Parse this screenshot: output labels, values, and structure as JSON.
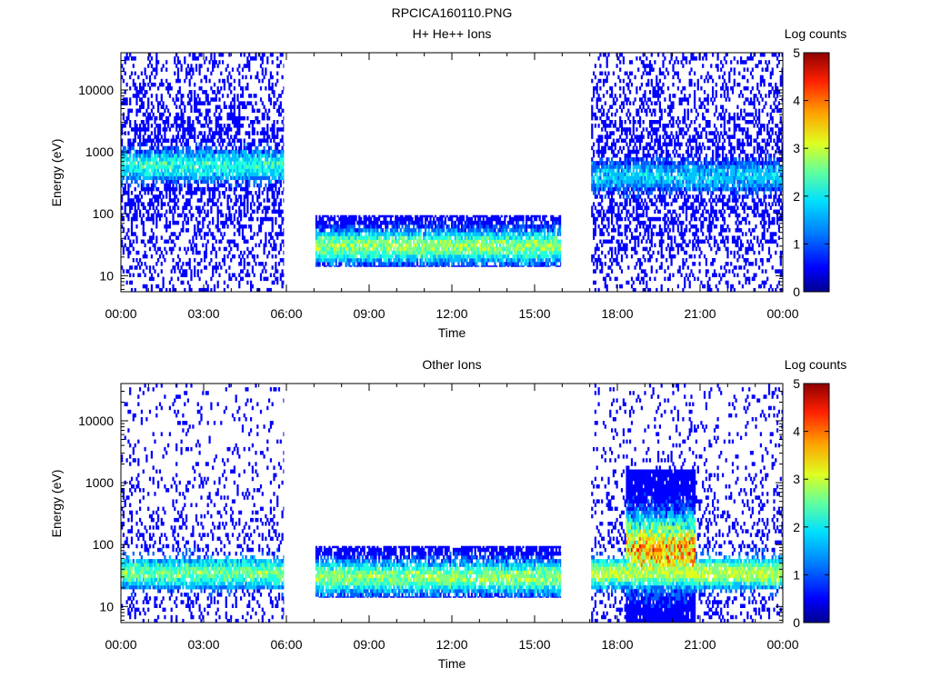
{
  "page_title": "RPCICA160110.PNG",
  "colors": {
    "colormap": [
      "#00008f",
      "#0000ff",
      "#0060ff",
      "#00c0ff",
      "#20ffdf",
      "#80ff80",
      "#dfff20",
      "#ffc000",
      "#ff6000",
      "#ff0000",
      "#8f0000"
    ],
    "background": "#ffffff"
  },
  "chart_data": [
    {
      "type": "heatmap",
      "title": "H+ He++ Ions",
      "xlabel": "Time",
      "ylabel": "Energy (eV)",
      "x_ticks": [
        "00:00",
        "03:00",
        "06:00",
        "09:00",
        "12:00",
        "15:00",
        "18:00",
        "21:00",
        "00:00"
      ],
      "xlim_hours": [
        0,
        24
      ],
      "y_scale": "log",
      "ylim": [
        5.5,
        40000
      ],
      "y_ticks": [
        10,
        100,
        1000,
        10000
      ],
      "y_tick_labels": [
        "10",
        "100",
        "1000",
        "10000"
      ],
      "colorbar_label": "Log counts",
      "colorbar_range": [
        0,
        5
      ],
      "colorbar_ticks": [
        "0",
        "1",
        "2",
        "3",
        "4",
        "5"
      ],
      "data_gaps_hours": [
        [
          5.9,
          7.05
        ],
        [
          15.95,
          17.05
        ]
      ],
      "segments": [
        {
          "start_h": 0.0,
          "end_h": 5.9,
          "e_min": 5.5,
          "e_max": 40000,
          "band_center_eV": 600,
          "band_level": 2.0,
          "noise_density": 0.55
        },
        {
          "start_h": 7.05,
          "end_h": 15.95,
          "e_min": 14,
          "e_max": 95,
          "band_center_eV": 30,
          "band_level": 2.6,
          "noise_density": 0.85
        },
        {
          "start_h": 17.05,
          "end_h": 24.0,
          "e_min": 5.5,
          "e_max": 40000,
          "band_center_eV": 400,
          "band_level": 1.6,
          "noise_density": 0.55
        }
      ]
    },
    {
      "type": "heatmap",
      "title": "Other Ions",
      "xlabel": "Time",
      "ylabel": "Energy (eV)",
      "x_ticks": [
        "00:00",
        "03:00",
        "06:00",
        "09:00",
        "12:00",
        "15:00",
        "18:00",
        "21:00",
        "00:00"
      ],
      "xlim_hours": [
        0,
        24
      ],
      "y_scale": "log",
      "ylim": [
        5.5,
        40000
      ],
      "y_ticks": [
        10,
        100,
        1000,
        10000
      ],
      "y_tick_labels": [
        "10",
        "100",
        "1000",
        "10000"
      ],
      "colorbar_label": "Log counts",
      "colorbar_range": [
        0,
        5
      ],
      "colorbar_ticks": [
        "0",
        "1",
        "2",
        "3",
        "4",
        "5"
      ],
      "data_gaps_hours": [
        [
          5.9,
          7.05
        ],
        [
          15.95,
          17.05
        ]
      ],
      "segments": [
        {
          "start_h": 0.0,
          "end_h": 5.9,
          "e_min": 5.5,
          "e_max": 40000,
          "band_center_eV": 35,
          "band_level": 2.4,
          "noise_density": 0.25
        },
        {
          "start_h": 7.05,
          "end_h": 15.95,
          "e_min": 14,
          "e_max": 95,
          "band_center_eV": 30,
          "band_level": 2.6,
          "noise_density": 0.85
        },
        {
          "start_h": 17.05,
          "end_h": 24.0,
          "e_min": 5.5,
          "e_max": 40000,
          "band_center_eV": 35,
          "band_level": 2.8,
          "noise_density": 0.3,
          "burst_start_h": 18.3,
          "burst_end_h": 20.8,
          "burst_peak_eV": 80,
          "burst_level": 4.3
        }
      ]
    }
  ]
}
